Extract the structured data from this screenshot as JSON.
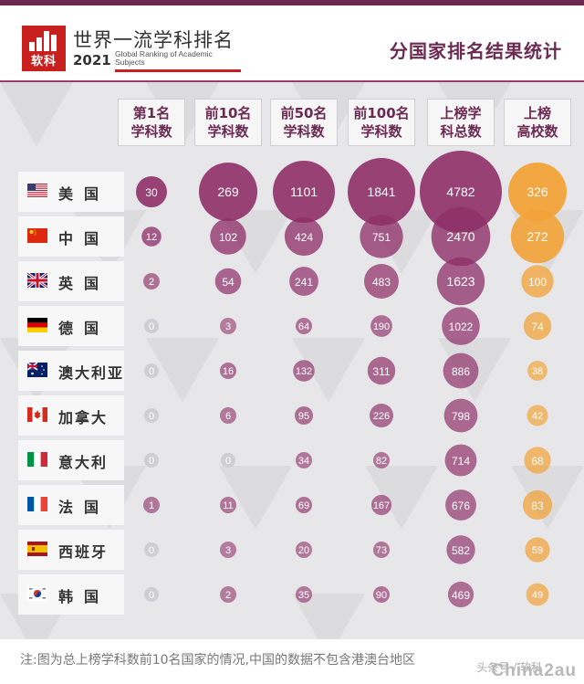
{
  "header": {
    "logo_text": "软科",
    "title": "世界一流学科排名",
    "year": "2021",
    "subtitle_en": "Global Ranking of Academic Subjects",
    "right_title": "分国家排名结果统计",
    "brand_color": "#c8201f"
  },
  "chart_data": {
    "type": "table",
    "title": "分国家排名结果统计",
    "columns": [
      "第1名学科数",
      "前10名学科数",
      "前50名学科数",
      "前100名学科数",
      "上榜学科总数",
      "上榜高校数"
    ],
    "column_labels": [
      [
        "第1名",
        "学科数"
      ],
      [
        "前10名",
        "学科数"
      ],
      [
        "前50名",
        "学科数"
      ],
      [
        "前100名",
        "学科数"
      ],
      [
        "上榜学",
        "科总数"
      ],
      [
        "上榜",
        "高校数"
      ]
    ],
    "rows": [
      {
        "country": "美国",
        "flag": "us-flag",
        "values": [
          30,
          269,
          1101,
          1841,
          4782,
          326
        ]
      },
      {
        "country": "中国",
        "flag": "china-flag",
        "values": [
          12,
          102,
          424,
          751,
          2470,
          272
        ]
      },
      {
        "country": "英国",
        "flag": "uk-flag",
        "values": [
          2,
          54,
          241,
          483,
          1623,
          100
        ]
      },
      {
        "country": "德国",
        "flag": "germany-flag",
        "values": [
          0,
          3,
          64,
          190,
          1022,
          74
        ]
      },
      {
        "country": "澳大利亚",
        "flag": "australia-flag",
        "values": [
          0,
          16,
          132,
          311,
          886,
          38
        ]
      },
      {
        "country": "加拿大",
        "flag": "canada-flag",
        "values": [
          0,
          6,
          95,
          226,
          798,
          42
        ]
      },
      {
        "country": "意大利",
        "flag": "italy-flag",
        "values": [
          0,
          0,
          34,
          82,
          714,
          68
        ]
      },
      {
        "country": "法国",
        "flag": "france-flag",
        "values": [
          1,
          11,
          69,
          167,
          676,
          83
        ]
      },
      {
        "country": "西班牙",
        "flag": "spain-flag",
        "values": [
          0,
          3,
          20,
          73,
          582,
          59
        ]
      },
      {
        "country": "韩国",
        "flag": "korea-flag",
        "values": [
          0,
          2,
          35,
          90,
          469,
          49
        ]
      }
    ],
    "bubble_color_subjects": "#8e2f68",
    "bubble_color_universities": "#f2a33a",
    "zero_color": "#cfcfd3"
  },
  "footer": {
    "note": "注:图为总上榜学科数前10名国家的情况,中国的数据不包含港澳台地区",
    "watermark_small": "头条号 / 软科",
    "watermark_large": "China2au"
  }
}
